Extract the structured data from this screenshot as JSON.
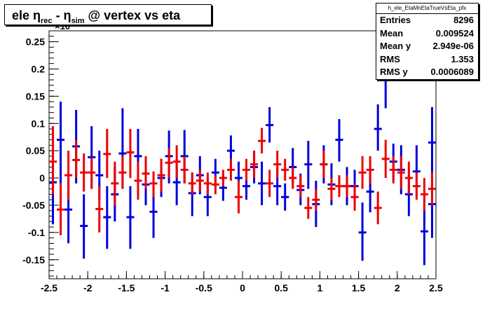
{
  "title": {
    "part1": "ele η",
    "sub1": "rec",
    "part2": " - η",
    "sub2": "sim",
    "part3": " @ vertex vs eta"
  },
  "stats": {
    "name": "h_ele_EtaMnEtaTrueVsEta_pfx",
    "rows": [
      {
        "label": "Entries",
        "value": "8296"
      },
      {
        "label": "Mean",
        "value": "0.009524"
      },
      {
        "label": "Mean y",
        "value": "2.949e-06"
      },
      {
        "label": "RMS",
        "value": "1.353"
      },
      {
        "label": "RMS y",
        "value": "0.0006089"
      }
    ]
  },
  "exponent_label": "×10",
  "chart_data": {
    "type": "scatter",
    "title": "ele η_rec - η_sim @ vertex vs eta",
    "xlim": [
      -2.5,
      2.5
    ],
    "ylim": [
      -0.185,
      0.27
    ],
    "y_multiplier_label": "×10",
    "x_ticks": [
      "-2.5",
      "-2",
      "-1.5",
      "-1",
      "-0.5",
      "0",
      "0.5",
      "1",
      "1.5",
      "2",
      "2.5"
    ],
    "y_ticks": [
      "-0.15",
      "-0.1",
      "-0.05",
      "0",
      "0.05",
      "0.1",
      "0.15",
      "0.2",
      "0.25"
    ],
    "colors": {
      "blue": "#0000dd",
      "red": "#ee0000"
    },
    "bin_half_width": 0.05,
    "series": [
      {
        "color": "blue",
        "points": [
          {
            "x": -2.45,
            "y": -0.008,
            "lo": -0.085,
            "hi": 0.075
          },
          {
            "x": -2.35,
            "y": 0.07,
            "lo": -0.01,
            "hi": 0.14
          },
          {
            "x": -2.25,
            "y": -0.058,
            "lo": -0.12,
            "hi": 0.0
          },
          {
            "x": -2.15,
            "y": 0.058,
            "lo": -0.01,
            "hi": 0.125
          },
          {
            "x": -2.05,
            "y": -0.088,
            "lo": -0.148,
            "hi": -0.03
          },
          {
            "x": -1.95,
            "y": 0.038,
            "lo": -0.02,
            "hi": 0.095
          },
          {
            "x": -1.85,
            "y": 0.005,
            "lo": -0.04,
            "hi": 0.05
          },
          {
            "x": -1.75,
            "y": -0.072,
            "lo": -0.13,
            "hi": -0.015
          },
          {
            "x": -1.65,
            "y": -0.03,
            "lo": -0.08,
            "hi": 0.02
          },
          {
            "x": -1.55,
            "y": 0.045,
            "lo": -0.02,
            "hi": 0.128
          },
          {
            "x": -1.45,
            "y": -0.072,
            "lo": -0.13,
            "hi": -0.015
          },
          {
            "x": -1.35,
            "y": 0.04,
            "lo": -0.01,
            "hi": 0.09
          },
          {
            "x": -1.25,
            "y": -0.012,
            "lo": -0.05,
            "hi": 0.03
          },
          {
            "x": -1.15,
            "y": -0.062,
            "lo": -0.11,
            "hi": -0.015
          },
          {
            "x": -1.05,
            "y": 0.0,
            "lo": -0.035,
            "hi": 0.035
          },
          {
            "x": -0.95,
            "y": 0.04,
            "lo": -0.01,
            "hi": 0.087
          },
          {
            "x": -0.85,
            "y": -0.008,
            "lo": -0.05,
            "hi": 0.035
          },
          {
            "x": -0.75,
            "y": 0.04,
            "lo": -0.01,
            "hi": 0.088
          },
          {
            "x": -0.65,
            "y": -0.028,
            "lo": -0.07,
            "hi": 0.01
          },
          {
            "x": -0.55,
            "y": 0.005,
            "lo": -0.03,
            "hi": 0.04
          },
          {
            "x": -0.45,
            "y": -0.035,
            "lo": -0.07,
            "hi": 0.0
          },
          {
            "x": -0.35,
            "y": 0.01,
            "lo": -0.015,
            "hi": 0.035
          },
          {
            "x": -0.25,
            "y": -0.018,
            "lo": -0.042,
            "hi": 0.005
          },
          {
            "x": -0.15,
            "y": 0.05,
            "lo": 0.018,
            "hi": 0.078
          },
          {
            "x": -0.05,
            "y": 0.0,
            "lo": -0.03,
            "hi": 0.03
          },
          {
            "x": 0.05,
            "y": -0.015,
            "lo": -0.04,
            "hi": 0.012
          },
          {
            "x": 0.15,
            "y": 0.02,
            "lo": -0.01,
            "hi": 0.05
          },
          {
            "x": 0.25,
            "y": -0.01,
            "lo": -0.05,
            "hi": 0.03
          },
          {
            "x": 0.35,
            "y": 0.097,
            "lo": 0.065,
            "hi": 0.13
          },
          {
            "x": 0.45,
            "y": -0.015,
            "lo": -0.05,
            "hi": 0.02
          },
          {
            "x": 0.55,
            "y": -0.035,
            "lo": -0.06,
            "hi": -0.01
          },
          {
            "x": 0.65,
            "y": 0.02,
            "lo": -0.01,
            "hi": 0.055
          },
          {
            "x": 0.75,
            "y": -0.022,
            "lo": -0.05,
            "hi": 0.008
          },
          {
            "x": 0.85,
            "y": 0.025,
            "lo": -0.02,
            "hi": 0.068
          },
          {
            "x": 0.95,
            "y": -0.048,
            "lo": -0.09,
            "hi": -0.005
          },
          {
            "x": 1.05,
            "y": 0.025,
            "lo": -0.01,
            "hi": 0.06
          },
          {
            "x": 1.15,
            "y": -0.012,
            "lo": -0.05,
            "hi": 0.027
          },
          {
            "x": 1.25,
            "y": 0.07,
            "lo": 0.03,
            "hi": 0.108
          },
          {
            "x": 1.35,
            "y": -0.015,
            "lo": -0.05,
            "hi": 0.02
          },
          {
            "x": 1.45,
            "y": -0.015,
            "lo": -0.045,
            "hi": 0.015
          },
          {
            "x": 1.55,
            "y": -0.1,
            "lo": -0.152,
            "hi": -0.045
          },
          {
            "x": 1.65,
            "y": -0.025,
            "lo": -0.063,
            "hi": 0.013
          },
          {
            "x": 1.75,
            "y": 0.09,
            "lo": 0.05,
            "hi": 0.135
          },
          {
            "x": 1.85,
            "y": 0.18,
            "lo": 0.128,
            "hi": 0.23
          },
          {
            "x": 1.95,
            "y": 0.03,
            "lo": -0.005,
            "hi": 0.063
          },
          {
            "x": 2.05,
            "y": 0.015,
            "lo": -0.03,
            "hi": 0.06
          },
          {
            "x": 2.15,
            "y": -0.03,
            "lo": -0.07,
            "hi": 0.01
          },
          {
            "x": 2.25,
            "y": 0.012,
            "lo": -0.035,
            "hi": 0.06
          },
          {
            "x": 2.35,
            "y": -0.098,
            "lo": -0.16,
            "hi": -0.035
          },
          {
            "x": 2.45,
            "y": 0.065,
            "lo": -0.005,
            "hi": 0.13
          },
          {
            "x": 2.45,
            "y": -0.048,
            "lo": -0.11,
            "hi": 0.02
          }
        ]
      },
      {
        "color": "red",
        "points": [
          {
            "x": -2.45,
            "y": 0.03,
            "lo": -0.03,
            "hi": 0.095
          },
          {
            "x": -2.35,
            "y": -0.058,
            "lo": -0.105,
            "hi": -0.01
          },
          {
            "x": -2.25,
            "y": 0.005,
            "lo": -0.04,
            "hi": 0.05
          },
          {
            "x": -2.15,
            "y": 0.033,
            "lo": 0.0,
            "hi": 0.07
          },
          {
            "x": -2.05,
            "y": 0.01,
            "lo": -0.025,
            "hi": 0.045
          },
          {
            "x": -1.95,
            "y": 0.01,
            "lo": -0.02,
            "hi": 0.038
          },
          {
            "x": -1.85,
            "y": -0.057,
            "lo": -0.1,
            "hi": -0.015
          },
          {
            "x": -1.75,
            "y": 0.044,
            "lo": 0.0,
            "hi": 0.09
          },
          {
            "x": -1.65,
            "y": -0.01,
            "lo": -0.05,
            "hi": 0.03
          },
          {
            "x": -1.55,
            "y": 0.01,
            "lo": -0.02,
            "hi": 0.04
          },
          {
            "x": -1.45,
            "y": 0.047,
            "lo": 0.0,
            "hi": 0.09
          },
          {
            "x": -1.35,
            "y": -0.005,
            "lo": -0.04,
            "hi": 0.03
          },
          {
            "x": -1.25,
            "y": 0.008,
            "lo": -0.02,
            "hi": 0.04
          },
          {
            "x": -1.15,
            "y": -0.01,
            "lo": -0.035,
            "hi": 0.012
          },
          {
            "x": -1.05,
            "y": 0.005,
            "lo": -0.025,
            "hi": 0.035
          },
          {
            "x": -0.95,
            "y": 0.028,
            "lo": 0.0,
            "hi": 0.055
          },
          {
            "x": -0.85,
            "y": 0.03,
            "lo": 0.0,
            "hi": 0.06
          },
          {
            "x": -0.75,
            "y": 0.015,
            "lo": -0.01,
            "hi": 0.04
          },
          {
            "x": -0.65,
            "y": -0.01,
            "lo": -0.03,
            "hi": 0.01
          },
          {
            "x": -0.55,
            "y": -0.005,
            "lo": -0.025,
            "hi": 0.015
          },
          {
            "x": -0.45,
            "y": -0.01,
            "lo": -0.03,
            "hi": 0.01
          },
          {
            "x": -0.35,
            "y": -0.012,
            "lo": -0.03,
            "hi": 0.005
          },
          {
            "x": -0.25,
            "y": 0.0,
            "lo": -0.015,
            "hi": 0.015
          },
          {
            "x": -0.15,
            "y": 0.015,
            "lo": -0.005,
            "hi": 0.035
          },
          {
            "x": -0.05,
            "y": -0.035,
            "lo": -0.065,
            "hi": -0.005
          },
          {
            "x": 0.05,
            "y": 0.015,
            "lo": -0.005,
            "hi": 0.035
          },
          {
            "x": 0.15,
            "y": 0.025,
            "lo": 0.0,
            "hi": 0.05
          },
          {
            "x": 0.25,
            "y": 0.068,
            "lo": 0.045,
            "hi": 0.092
          },
          {
            "x": 0.35,
            "y": -0.01,
            "lo": -0.035,
            "hi": 0.015
          },
          {
            "x": 0.45,
            "y": 0.025,
            "lo": 0.0,
            "hi": 0.05
          },
          {
            "x": 0.55,
            "y": 0.015,
            "lo": -0.005,
            "hi": 0.035
          },
          {
            "x": 0.65,
            "y": 0.0,
            "lo": -0.02,
            "hi": 0.02
          },
          {
            "x": 0.75,
            "y": -0.015,
            "lo": -0.035,
            "hi": 0.005
          },
          {
            "x": 0.85,
            "y": -0.055,
            "lo": -0.075,
            "hi": -0.035
          },
          {
            "x": 0.95,
            "y": -0.04,
            "lo": -0.06,
            "hi": -0.02
          },
          {
            "x": 1.05,
            "y": 0.025,
            "lo": 0.0,
            "hi": 0.05
          },
          {
            "x": 1.15,
            "y": -0.02,
            "lo": -0.04,
            "hi": 0.0
          },
          {
            "x": 1.25,
            "y": -0.015,
            "lo": -0.035,
            "hi": 0.005
          },
          {
            "x": 1.35,
            "y": -0.015,
            "lo": -0.035,
            "hi": 0.005
          },
          {
            "x": 1.45,
            "y": -0.035,
            "lo": -0.06,
            "hi": -0.01
          },
          {
            "x": 1.55,
            "y": 0.01,
            "lo": -0.02,
            "hi": 0.04
          },
          {
            "x": 1.65,
            "y": 0.015,
            "lo": -0.01,
            "hi": 0.04
          },
          {
            "x": 1.75,
            "y": -0.055,
            "lo": -0.085,
            "hi": -0.025
          },
          {
            "x": 1.85,
            "y": 0.035,
            "lo": 0.0,
            "hi": 0.07
          },
          {
            "x": 1.95,
            "y": 0.015,
            "lo": -0.01,
            "hi": 0.04
          },
          {
            "x": 2.05,
            "y": 0.01,
            "lo": -0.02,
            "hi": 0.04
          },
          {
            "x": 2.15,
            "y": 0.0,
            "lo": -0.03,
            "hi": 0.03
          },
          {
            "x": 2.25,
            "y": -0.015,
            "lo": -0.04,
            "hi": 0.01
          },
          {
            "x": 2.35,
            "y": -0.03,
            "lo": -0.06,
            "hi": 0.0
          },
          {
            "x": 2.45,
            "y": -0.02,
            "lo": -0.05,
            "hi": 0.01
          }
        ]
      }
    ]
  }
}
